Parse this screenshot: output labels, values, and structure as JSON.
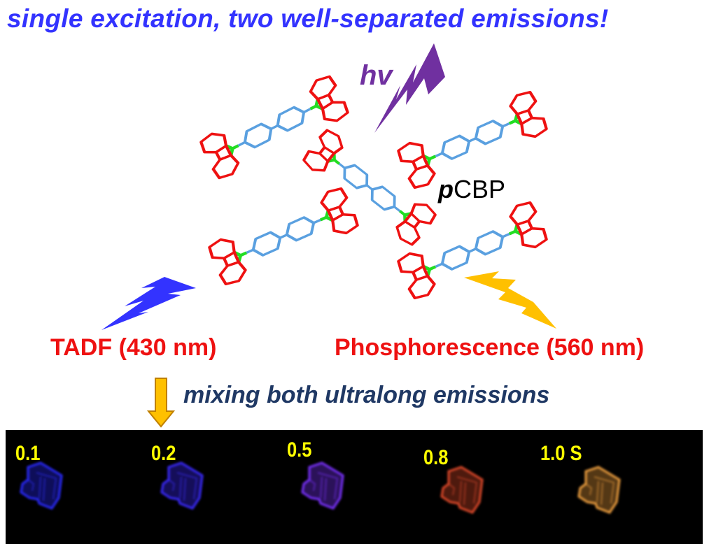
{
  "title": "single excitation, two well-separated emissions!",
  "excitation_label": "hv",
  "molecule_label": {
    "prefix": "p",
    "name": "CBP"
  },
  "emissions": {
    "tadf": "TADF (430 nm)",
    "phosphorescence": "Phosphorescence (560 nm)"
  },
  "mixing_caption": "mixing both ultralong emissions",
  "photo_strip": {
    "frames": [
      {
        "label": "0.1",
        "color": "#2a2aff"
      },
      {
        "label": "0.2",
        "color": "#3a2aff"
      },
      {
        "label": "0.5",
        "color": "#7a30ff"
      },
      {
        "label": "0.8",
        "color": "#e04a2a"
      },
      {
        "label": "1.0 S",
        "color": "#f0a040"
      }
    ]
  },
  "colors": {
    "title": "#3333ff",
    "excitation": "#7030a0",
    "tadf_bolt": "#3333ff",
    "phos_bolt": "#ffc000",
    "emission_text": "#ee1111",
    "caption": "#1f3864",
    "carbazole": "#ee1111",
    "phenyl": "#5aa0e0",
    "nitrogen": "#22dd22"
  }
}
